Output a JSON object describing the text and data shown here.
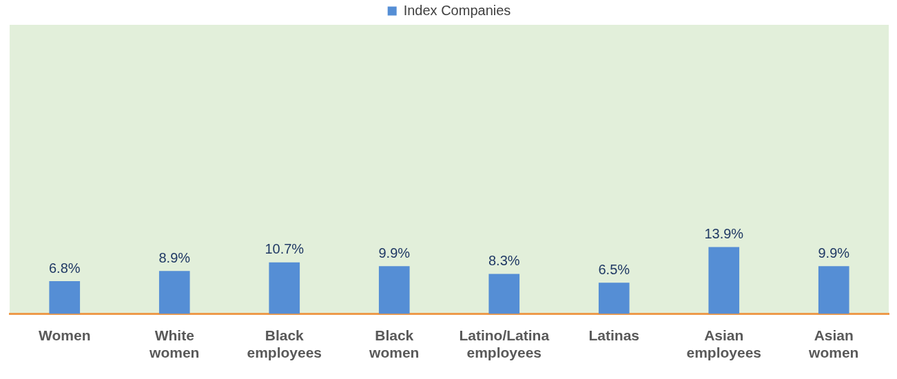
{
  "chart_data": {
    "type": "bar",
    "categories": [
      "Women",
      "White women",
      "Black employees",
      "Black women",
      "Latino/Latina employees",
      "Latinas",
      "Asian employees",
      "Asian women"
    ],
    "series": [
      {
        "name": "Index Companies",
        "color": "#558ed5",
        "values": [
          6.8,
          8.9,
          10.7,
          9.9,
          8.3,
          6.5,
          13.9,
          9.9
        ],
        "value_labels": [
          "6.8%",
          "8.9%",
          "10.7%",
          "9.9%",
          "8.3%",
          "6.5%",
          "13.9%",
          "9.9%"
        ]
      }
    ],
    "legend": "top",
    "grid": false,
    "tick_labels": "x"
  }
}
